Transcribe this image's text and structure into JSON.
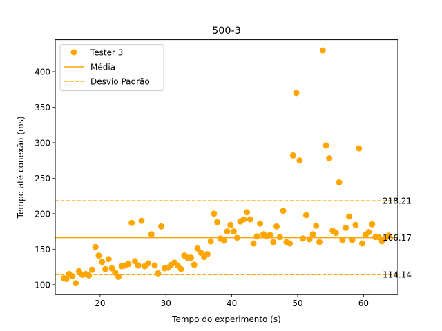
{
  "chart_data": {
    "type": "scatter",
    "title": "500-3",
    "xlabel": "Tempo do experimento (s)",
    "ylabel": "Tempo até conexão (ms)",
    "xlim": [
      13.2,
      65.2
    ],
    "ylim": [
      86,
      445
    ],
    "xticks": [
      20,
      30,
      40,
      50,
      60
    ],
    "yticks": [
      100,
      150,
      200,
      250,
      300,
      350,
      400
    ],
    "grid": false,
    "legend_position": "top-left",
    "colors": {
      "series": "#ffa500",
      "axis": "#000000"
    },
    "legend": [
      {
        "label": "Tester 3",
        "kind": "marker"
      },
      {
        "label": "Média",
        "kind": "solid-line"
      },
      {
        "label": "Desvio Padrão",
        "kind": "dashed-line"
      }
    ],
    "hlines": [
      {
        "y": 218.21,
        "label": "218.21",
        "style": "dashed"
      },
      {
        "y": 166.17,
        "label": "166.17",
        "style": "solid"
      },
      {
        "y": 114.14,
        "label": "114.14",
        "style": "dashed"
      }
    ],
    "series": [
      {
        "name": "Tester 3",
        "points": [
          [
            14.5,
            109
          ],
          [
            14.9,
            108
          ],
          [
            15.3,
            115
          ],
          [
            15.8,
            112
          ],
          [
            16.3,
            102
          ],
          [
            16.8,
            119
          ],
          [
            17.3,
            114
          ],
          [
            17.8,
            115
          ],
          [
            18.3,
            113
          ],
          [
            18.8,
            121
          ],
          [
            19.3,
            153
          ],
          [
            19.8,
            141
          ],
          [
            20.3,
            132
          ],
          [
            20.8,
            122
          ],
          [
            21.3,
            136
          ],
          [
            21.8,
            123
          ],
          [
            22.3,
            117
          ],
          [
            22.8,
            111
          ],
          [
            23.3,
            126
          ],
          [
            23.8,
            127
          ],
          [
            24.3,
            129
          ],
          [
            24.8,
            187
          ],
          [
            25.3,
            133
          ],
          [
            25.8,
            127
          ],
          [
            26.3,
            190
          ],
          [
            26.8,
            126
          ],
          [
            27.3,
            130
          ],
          [
            27.8,
            171
          ],
          [
            28.3,
            127
          ],
          [
            28.8,
            116
          ],
          [
            29.3,
            182
          ],
          [
            29.8,
            123
          ],
          [
            30.3,
            124
          ],
          [
            30.8,
            128
          ],
          [
            31.3,
            131
          ],
          [
            31.8,
            127
          ],
          [
            32.3,
            122
          ],
          [
            32.8,
            141
          ],
          [
            33.3,
            138
          ],
          [
            33.8,
            138
          ],
          [
            34.3,
            128
          ],
          [
            34.8,
            151
          ],
          [
            35.3,
            145
          ],
          [
            35.8,
            139
          ],
          [
            36.3,
            143
          ],
          [
            36.8,
            161
          ],
          [
            37.3,
            200
          ],
          [
            37.8,
            188
          ],
          [
            38.3,
            165
          ],
          [
            38.8,
            162
          ],
          [
            39.3,
            175
          ],
          [
            39.8,
            184
          ],
          [
            40.3,
            175
          ],
          [
            40.8,
            166
          ],
          [
            41.3,
            189
          ],
          [
            41.8,
            192
          ],
          [
            42.3,
            202
          ],
          [
            42.8,
            192
          ],
          [
            43.3,
            158
          ],
          [
            43.8,
            168
          ],
          [
            44.3,
            186
          ],
          [
            44.8,
            171
          ],
          [
            45.3,
            168
          ],
          [
            45.8,
            170
          ],
          [
            46.3,
            160
          ],
          [
            46.8,
            182
          ],
          [
            47.3,
            167
          ],
          [
            47.8,
            204
          ],
          [
            48.3,
            160
          ],
          [
            48.8,
            158
          ],
          [
            49.3,
            282
          ],
          [
            49.8,
            370
          ],
          [
            50.3,
            275
          ],
          [
            50.8,
            165
          ],
          [
            51.3,
            198
          ],
          [
            51.8,
            164
          ],
          [
            52.3,
            171
          ],
          [
            52.8,
            183
          ],
          [
            53.3,
            160
          ],
          [
            53.8,
            430
          ],
          [
            54.3,
            296
          ],
          [
            54.8,
            278
          ],
          [
            55.3,
            176
          ],
          [
            55.8,
            173
          ],
          [
            56.3,
            244
          ],
          [
            56.8,
            163
          ],
          [
            57.3,
            180
          ],
          [
            57.8,
            196
          ],
          [
            58.3,
            163
          ],
          [
            58.8,
            184
          ],
          [
            59.3,
            292
          ],
          [
            59.8,
            158
          ],
          [
            60.3,
            170
          ],
          [
            60.8,
            174
          ],
          [
            61.3,
            185
          ],
          [
            61.8,
            167
          ],
          [
            62.3,
            167
          ],
          [
            62.8,
            161
          ],
          [
            63.3,
            165
          ],
          [
            63.8,
            169
          ]
        ]
      }
    ]
  }
}
